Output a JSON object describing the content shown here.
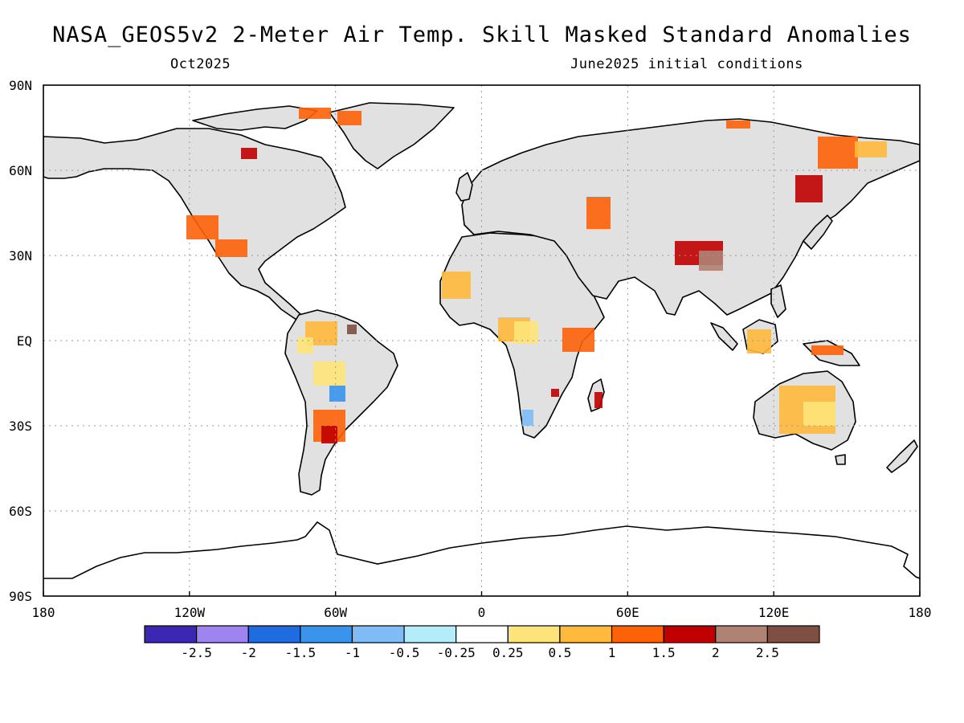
{
  "header": {
    "title": "NASA_GEOS5v2 2-Meter Air Temp. Skill Masked Standard Anomalies",
    "valid_month": "Oct2025",
    "init_text": "June2025 initial conditions"
  },
  "axes": {
    "lat_labels": [
      "90N",
      "60N",
      "30N",
      "EQ",
      "30S",
      "60S",
      "90S"
    ],
    "lon_labels": [
      "180",
      "120W",
      "60W",
      "0",
      "60E",
      "120E",
      "180"
    ]
  },
  "colorbar": {
    "colors": [
      "#3c27b4",
      "#9e84f0",
      "#1f6be0",
      "#3a94ec",
      "#7fbcf5",
      "#b4ecf9",
      "#ffffff",
      "#fde47a",
      "#ffb93c",
      "#fd6209",
      "#c00000",
      "#b08274",
      "#7e4f42"
    ],
    "tick_labels": [
      "-2.5",
      "-2",
      "-1.5",
      "-1",
      "-0.5",
      "-0.25",
      "0.25",
      "0.5",
      "1",
      "1.5",
      "2",
      "2.5"
    ]
  },
  "legend_colors": {
    "land_masked": "#e1e1e1"
  }
}
